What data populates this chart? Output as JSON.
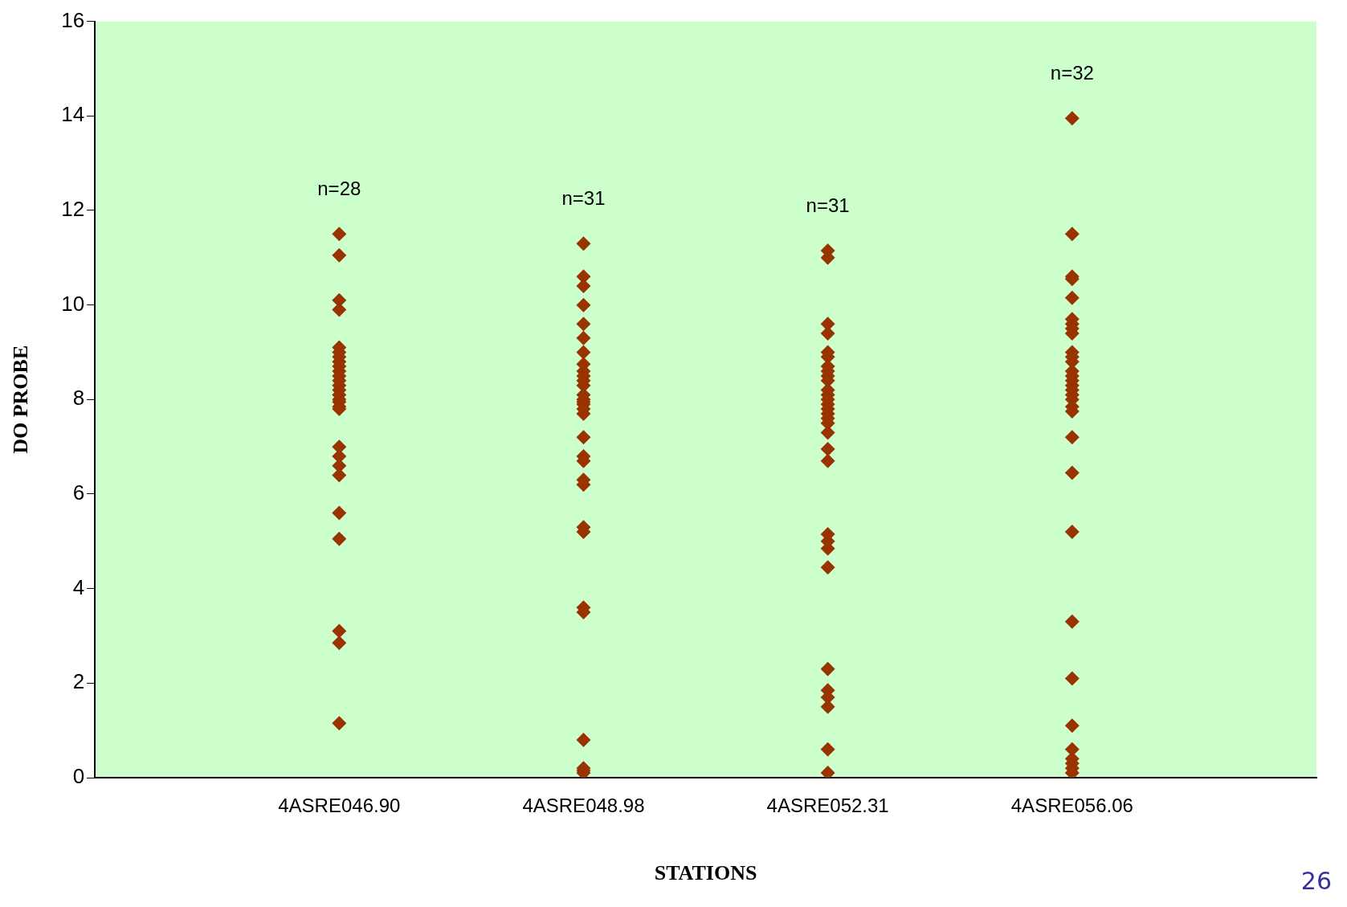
{
  "chart_data": {
    "type": "scatter",
    "xlabel": "STATIONS",
    "ylabel": "DO PROBE",
    "categories": [
      "4ASRE046.90",
      "4ASRE048.98",
      "4ASRE052.31",
      "4ASRE056.06"
    ],
    "series": [
      {
        "color": "#993300",
        "x": [
          "4ASRE046.90",
          "4ASRE046.90",
          "4ASRE046.90",
          "4ASRE046.90",
          "4ASRE046.90",
          "4ASRE046.90",
          "4ASRE046.90",
          "4ASRE046.90",
          "4ASRE046.90",
          "4ASRE046.90",
          "4ASRE046.90",
          "4ASRE046.90",
          "4ASRE046.90",
          "4ASRE046.90",
          "4ASRE046.90",
          "4ASRE046.90",
          "4ASRE046.90",
          "4ASRE046.90",
          "4ASRE046.90",
          "4ASRE046.90",
          "4ASRE046.90",
          "4ASRE046.90",
          "4ASRE046.90",
          "4ASRE046.90",
          "4ASRE046.90",
          "4ASRE046.90",
          "4ASRE046.90",
          "4ASRE046.90",
          "4ASRE048.98",
          "4ASRE048.98",
          "4ASRE048.98",
          "4ASRE048.98",
          "4ASRE048.98",
          "4ASRE048.98",
          "4ASRE048.98",
          "4ASRE048.98",
          "4ASRE048.98",
          "4ASRE048.98",
          "4ASRE048.98",
          "4ASRE048.98",
          "4ASRE048.98",
          "4ASRE048.98",
          "4ASRE048.98",
          "4ASRE048.98",
          "4ASRE048.98",
          "4ASRE048.98",
          "4ASRE048.98",
          "4ASRE048.98",
          "4ASRE048.98",
          "4ASRE048.98",
          "4ASRE048.98",
          "4ASRE048.98",
          "4ASRE048.98",
          "4ASRE048.98",
          "4ASRE048.98",
          "4ASRE048.98",
          "4ASRE048.98",
          "4ASRE048.98",
          "4ASRE048.98",
          "4ASRE052.31",
          "4ASRE052.31",
          "4ASRE052.31",
          "4ASRE052.31",
          "4ASRE052.31",
          "4ASRE052.31",
          "4ASRE052.31",
          "4ASRE052.31",
          "4ASRE052.31",
          "4ASRE052.31",
          "4ASRE052.31",
          "4ASRE052.31",
          "4ASRE052.31",
          "4ASRE052.31",
          "4ASRE052.31",
          "4ASRE052.31",
          "4ASRE052.31",
          "4ASRE052.31",
          "4ASRE052.31",
          "4ASRE052.31",
          "4ASRE052.31",
          "4ASRE052.31",
          "4ASRE052.31",
          "4ASRE052.31",
          "4ASRE052.31",
          "4ASRE052.31",
          "4ASRE052.31",
          "4ASRE052.31",
          "4ASRE052.31",
          "4ASRE052.31",
          "4ASRE052.31",
          "4ASRE056.06",
          "4ASRE056.06",
          "4ASRE056.06",
          "4ASRE056.06",
          "4ASRE056.06",
          "4ASRE056.06",
          "4ASRE056.06",
          "4ASRE056.06",
          "4ASRE056.06",
          "4ASRE056.06",
          "4ASRE056.06",
          "4ASRE056.06",
          "4ASRE056.06",
          "4ASRE056.06",
          "4ASRE056.06",
          "4ASRE056.06",
          "4ASRE056.06",
          "4ASRE056.06",
          "4ASRE056.06",
          "4ASRE056.06",
          "4ASRE056.06",
          "4ASRE056.06",
          "4ASRE056.06",
          "4ASRE056.06",
          "4ASRE056.06",
          "4ASRE056.06",
          "4ASRE056.06",
          "4ASRE056.06",
          "4ASRE056.06",
          "4ASRE056.06",
          "4ASRE056.06",
          "4ASRE056.06"
        ],
        "values": [
          11.5,
          11.05,
          10.1,
          9.9,
          9.1,
          9.0,
          8.9,
          8.8,
          8.7,
          8.6,
          8.5,
          8.4,
          8.3,
          8.2,
          8.1,
          8.0,
          7.95,
          7.85,
          7.8,
          7.0,
          6.8,
          6.6,
          6.4,
          5.6,
          5.05,
          3.1,
          2.85,
          1.15,
          11.3,
          10.6,
          10.4,
          10.0,
          9.6,
          9.3,
          9.0,
          8.75,
          8.6,
          8.5,
          8.4,
          8.3,
          8.1,
          8.0,
          7.95,
          7.9,
          7.8,
          7.7,
          7.2,
          6.8,
          6.7,
          6.3,
          6.2,
          5.3,
          5.2,
          3.6,
          3.5,
          0.8,
          0.2,
          0.15,
          0.1,
          11.15,
          11.0,
          9.6,
          9.4,
          9.0,
          8.9,
          8.7,
          8.6,
          8.5,
          8.4,
          8.2,
          8.1,
          8.0,
          7.9,
          7.8,
          7.7,
          7.6,
          7.5,
          7.3,
          6.95,
          6.7,
          5.15,
          5.0,
          4.85,
          4.45,
          2.3,
          1.85,
          1.7,
          1.5,
          0.6,
          0.1,
          13.95,
          11.5,
          10.6,
          10.55,
          10.15,
          9.7,
          9.6,
          9.5,
          9.4,
          9.0,
          8.9,
          8.8,
          8.6,
          8.5,
          8.4,
          8.3,
          8.2,
          8.1,
          8.0,
          7.85,
          7.75,
          7.2,
          6.45,
          5.2,
          3.3,
          2.1,
          1.1,
          0.6,
          0.4,
          0.3,
          0.2,
          0.1
        ]
      }
    ],
    "ylim": [
      0,
      16
    ],
    "yticks": [
      0,
      2,
      4,
      6,
      8,
      10,
      12,
      14,
      16
    ],
    "marker": "diamond",
    "legend": false,
    "grid": false,
    "annotations": [
      "n=28",
      "n=31",
      "n=31",
      "n=32",
      "26"
    ]
  }
}
